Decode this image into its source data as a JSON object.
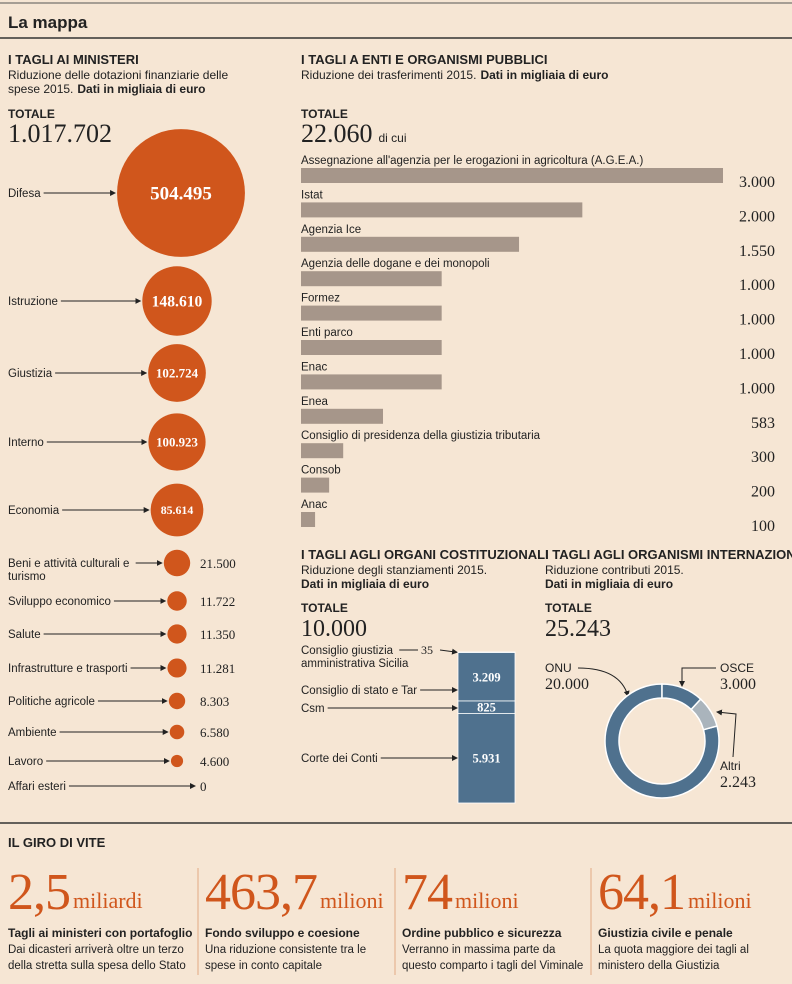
{
  "header": {
    "title": "La mappa"
  },
  "chart_data": [
    {
      "type": "bubble",
      "title": "I TAGLI AI MINISTERI",
      "subtitle": "Riduzione delle dotazioni finanziarie delle spese 2015.",
      "unit_note": "Dati in migliaia di euro",
      "total_heading": "TOTALE",
      "total": {
        "value": 1017702,
        "label": "1.017.702"
      },
      "categories": [
        "Difesa",
        "Istruzione",
        "Giustizia",
        "Interno",
        "Economia",
        "Beni e attività culturali e turismo",
        "Sviluppo economico",
        "Salute",
        "Infrastrutture e trasporti",
        "Politiche agricole",
        "Ambiente",
        "Lavoro",
        "Affari esteri"
      ],
      "values": [
        504495,
        148610,
        102724,
        100923,
        85614,
        21500,
        11722,
        11350,
        11281,
        8303,
        6580,
        4600,
        0
      ],
      "value_labels": [
        "504.495",
        "148.610",
        "102.724",
        "100.923",
        "85.614",
        "21.500",
        "11.722",
        "11.350",
        "11.281",
        "8.303",
        "6.580",
        "4.600",
        "0"
      ],
      "color": "#d0561c"
    },
    {
      "type": "bar",
      "title": "I TAGLI A ENTI E ORGANISMI PUBBLICI",
      "subtitle": "Riduzione dei trasferimenti 2015.",
      "unit_note": "Dati in migliaia di euro",
      "total_heading": "TOTALE",
      "total": {
        "value": 22060,
        "label": "22.060"
      },
      "total_suffix": "di cui",
      "categories": [
        "Assegnazione all'agenzia per le erogazioni in agricoltura (A.G.E.A.)",
        "Istat",
        "Agenzia Ice",
        "Agenzia delle dogane e dei monopoli",
        "Formez",
        "Enti parco",
        "Enac",
        "Enea",
        "Consiglio di presidenza della giustizia tributaria",
        "Consob",
        "Anac"
      ],
      "values": [
        3000,
        2000,
        1550,
        1000,
        1000,
        1000,
        1000,
        583,
        300,
        200,
        100
      ],
      "value_labels": [
        "3.000",
        "2.000",
        "1.550",
        "1.000",
        "1.000",
        "1.000",
        "1.000",
        "583",
        "300",
        "200",
        "100"
      ],
      "color": "#a6968a"
    },
    {
      "type": "stacked-bar",
      "title": "I TAGLI AGLI ORGANI COSTITUZIONALI",
      "subtitle": "Riduzione degli stanziamenti 2015.",
      "unit_note": "Dati in migliaia di euro",
      "total_heading": "TOTALE",
      "total": {
        "value": 10000,
        "label": "10.000"
      },
      "categories": [
        "Consiglio giustizia amministrativa Sicilia",
        "Consiglio di stato e Tar",
        "Csm",
        "Corte dei Conti"
      ],
      "values": [
        35,
        3209,
        825,
        5931
      ],
      "value_labels": [
        "35",
        "3.209",
        "825",
        "5.931"
      ],
      "color": "#4f718e"
    },
    {
      "type": "donut",
      "title": "I TAGLI AGLI ORGANISMI INTERNAZIONALI",
      "subtitle": "Riduzione contributi 2015.",
      "unit_note": "Dati in migliaia di euro",
      "total_heading": "TOTALE",
      "total": {
        "value": 25243,
        "label": "25.243"
      },
      "categories": [
        "ONU",
        "OSCE",
        "Altri"
      ],
      "values": [
        20000,
        3000,
        2243
      ],
      "value_labels": [
        "20.000",
        "3.000",
        "2.243"
      ],
      "colors": [
        "#4f718e",
        "#4f718e",
        "#aab4bc"
      ]
    }
  ],
  "giro": {
    "title": "IL GIRO DI VITE",
    "items": [
      {
        "number": "2,5",
        "unit": "miliardi",
        "title": "Tagli ai ministeri con portafoglio",
        "text": "Dai dicasteri arriverà oltre un terzo della stretta sulla spesa dello Stato"
      },
      {
        "number": "463,7",
        "unit": "milioni",
        "title": "Fondo sviluppo e coesione",
        "text": "Una riduzione consistente tra le spese in conto capitale"
      },
      {
        "number": "74",
        "unit": "milioni",
        "title": "Ordine pubblico e sicurezza",
        "text": "Verranno in massima parte da questo comparto i tagli del Viminale"
      },
      {
        "number": "64,1",
        "unit": "milioni",
        "title": "Giustizia civile e penale",
        "text": "La quota maggiore dei tagli al ministero della Giustizia"
      }
    ]
  }
}
